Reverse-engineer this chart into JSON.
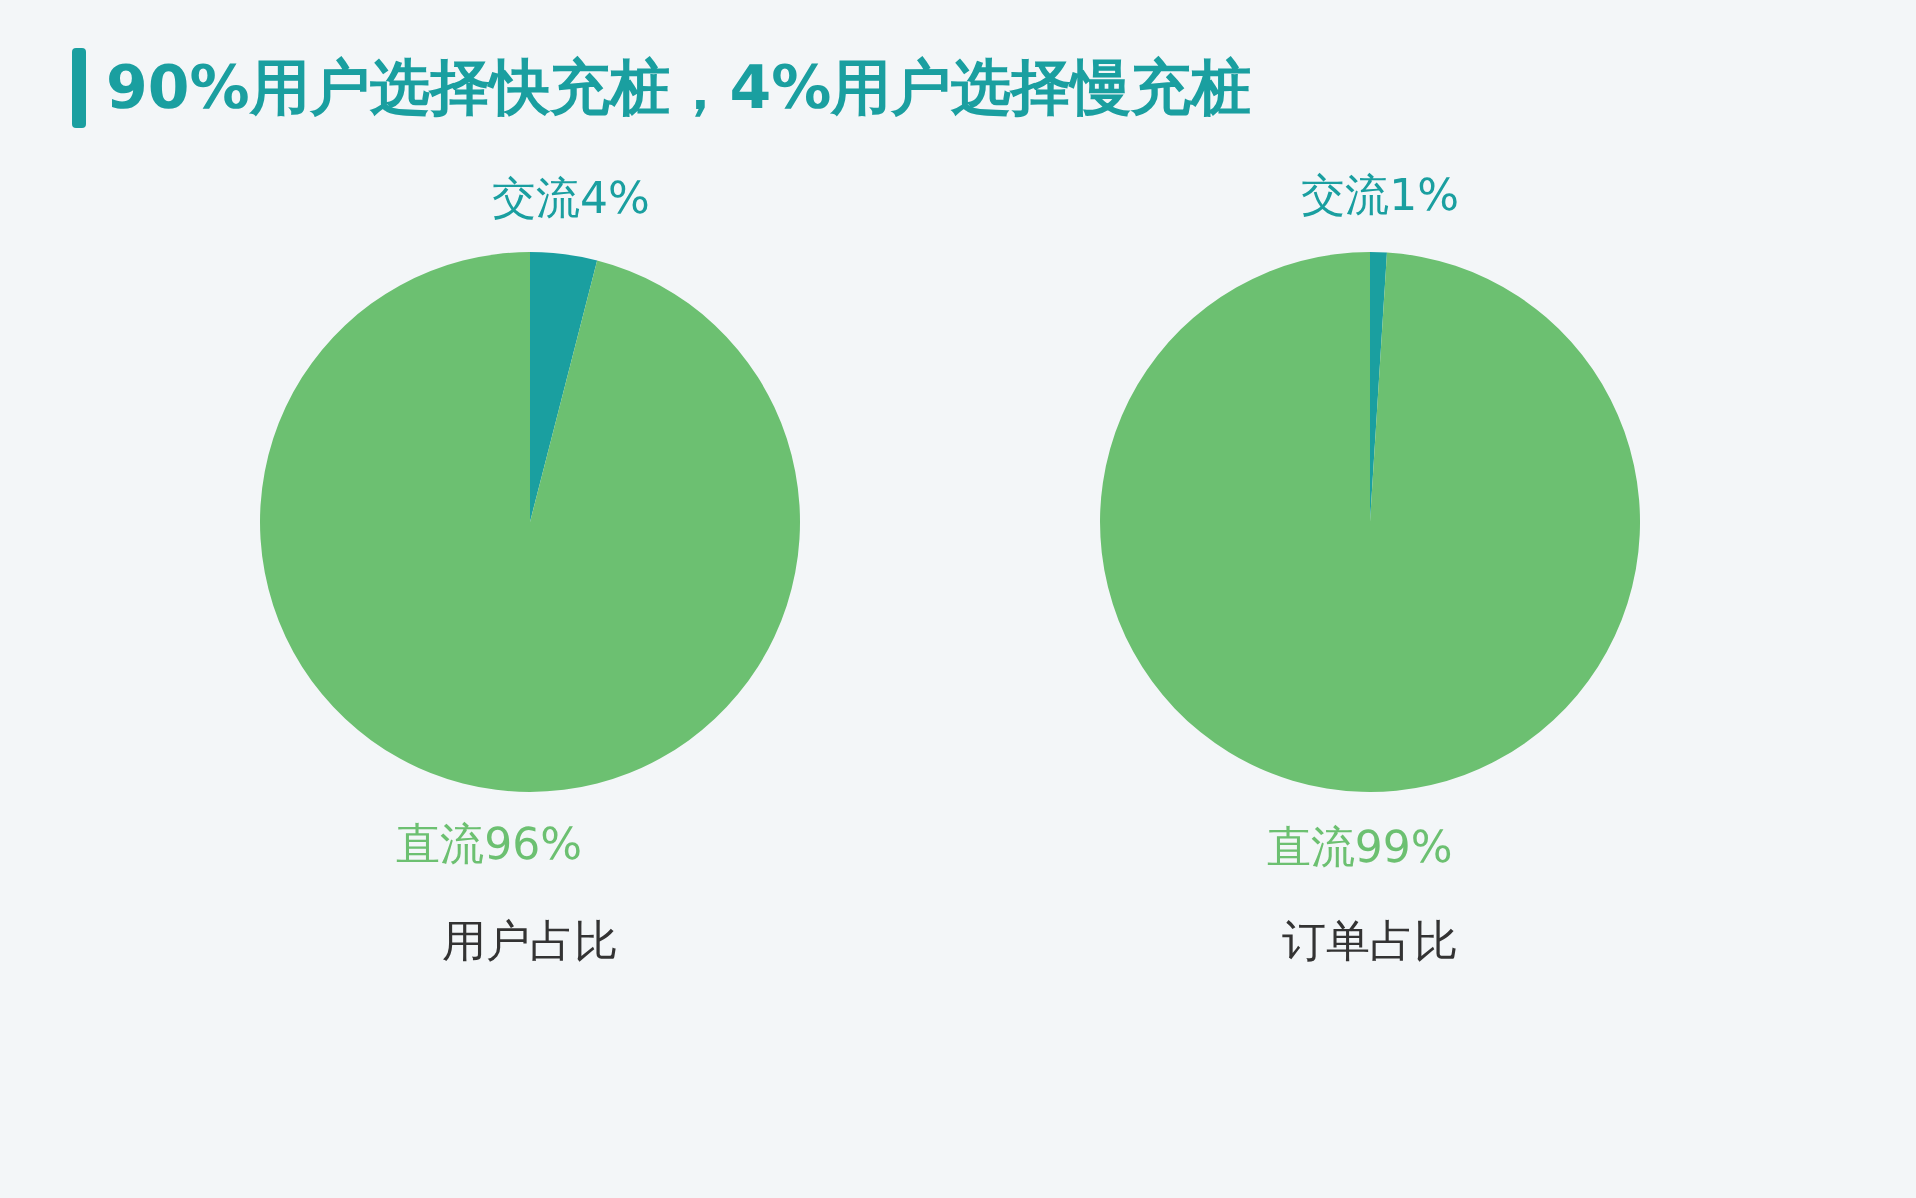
{
  "chart_data": [
    {
      "type": "pie",
      "title": "90%用户选择快充桩，4%用户选择慢充桩",
      "xlabel": "用户占比",
      "categories": [
        "交流",
        "直流"
      ],
      "values": [
        4,
        96
      ],
      "colors": [
        "#1a9fa0",
        "#6cc071"
      ],
      "value_labels": [
        "4%",
        "96%"
      ]
    },
    {
      "type": "pie",
      "xlabel": "订单占比",
      "categories": [
        "交流",
        "直流"
      ],
      "values": [
        1,
        99
      ],
      "colors": [
        "#1a9fa0",
        "#6cc071"
      ],
      "value_labels": [
        "1%",
        "99%"
      ]
    }
  ]
}
